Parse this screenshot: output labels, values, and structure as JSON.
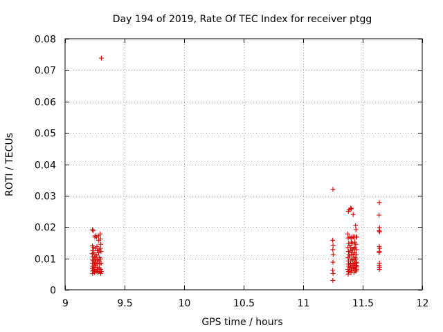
{
  "chart_data": {
    "type": "scatter",
    "title": "Day 194 of 2019, Rate Of TEC Index for receiver ptgg",
    "xlabel": "GPS time / hours",
    "ylabel": "ROTI / TECUs",
    "xlim": [
      9,
      12
    ],
    "ylim": [
      0,
      0.08
    ],
    "xticks": [
      9,
      9.5,
      10,
      10.5,
      11,
      11.5,
      12
    ],
    "xtick_labels": [
      "9",
      "9.5",
      "10",
      "10.5",
      "11",
      "11.5",
      "12"
    ],
    "yticks": [
      0,
      0.01,
      0.02,
      0.03,
      0.04,
      0.05,
      0.06,
      0.07,
      0.08
    ],
    "ytick_labels": [
      "0",
      "0.01",
      "0.02",
      "0.03",
      "0.04",
      "0.05",
      "0.06",
      "0.07",
      "0.08"
    ],
    "grid": true,
    "marker": "plus",
    "color": "#d40000",
    "points": [
      [
        9.305,
        0.0738
      ],
      [
        9.23,
        0.0192
      ],
      [
        9.235,
        0.0188
      ],
      [
        9.23,
        0.014
      ],
      [
        9.232,
        0.0125
      ],
      [
        9.228,
        0.0115
      ],
      [
        9.233,
        0.0105
      ],
      [
        9.231,
        0.0095
      ],
      [
        9.229,
        0.0085
      ],
      [
        9.233,
        0.0075
      ],
      [
        9.23,
        0.0068
      ],
      [
        9.232,
        0.006
      ],
      [
        9.231,
        0.0052
      ],
      [
        9.24,
        0.0135
      ],
      [
        9.243,
        0.0118
      ],
      [
        9.245,
        0.0102
      ],
      [
        9.242,
        0.0092
      ],
      [
        9.246,
        0.0082
      ],
      [
        9.244,
        0.0072
      ],
      [
        9.241,
        0.0063
      ],
      [
        9.247,
        0.0055
      ],
      [
        9.25,
        0.0168
      ],
      [
        9.255,
        0.0172
      ],
      [
        9.253,
        0.0132
      ],
      [
        9.256,
        0.0112
      ],
      [
        9.258,
        0.0098
      ],
      [
        9.254,
        0.0088
      ],
      [
        9.257,
        0.0078
      ],
      [
        9.26,
        0.0065
      ],
      [
        9.262,
        0.0058
      ],
      [
        9.265,
        0.0168
      ],
      [
        9.268,
        0.0138
      ],
      [
        9.27,
        0.0125
      ],
      [
        9.266,
        0.0108
      ],
      [
        9.272,
        0.0095
      ],
      [
        9.269,
        0.0085
      ],
      [
        9.274,
        0.0072
      ],
      [
        9.271,
        0.0062
      ],
      [
        9.276,
        0.0055
      ],
      [
        9.28,
        0.0172
      ],
      [
        9.283,
        0.0158
      ],
      [
        9.286,
        0.0128
      ],
      [
        9.282,
        0.0118
      ],
      [
        9.288,
        0.0102
      ],
      [
        9.285,
        0.0092
      ],
      [
        9.29,
        0.0082
      ],
      [
        9.287,
        0.0068
      ],
      [
        9.292,
        0.0058
      ],
      [
        9.295,
        0.0178
      ],
      [
        9.298,
        0.0162
      ],
      [
        9.3,
        0.0145
      ],
      [
        9.297,
        0.0132
      ],
      [
        9.302,
        0.0122
      ],
      [
        9.299,
        0.0098
      ],
      [
        9.303,
        0.0085
      ],
      [
        9.301,
        0.0065
      ],
      [
        9.305,
        0.0058
      ],
      [
        9.3,
        0.0052
      ],
      [
        11.25,
        0.032
      ],
      [
        11.248,
        0.0158
      ],
      [
        11.251,
        0.0142
      ],
      [
        11.249,
        0.0128
      ],
      [
        11.252,
        0.0112
      ],
      [
        11.25,
        0.0088
      ],
      [
        11.248,
        0.0062
      ],
      [
        11.251,
        0.0052
      ],
      [
        11.249,
        0.003
      ],
      [
        11.38,
        0.025
      ],
      [
        11.385,
        0.0255
      ],
      [
        11.375,
        0.0178
      ],
      [
        11.378,
        0.0165
      ],
      [
        11.382,
        0.0148
      ],
      [
        11.376,
        0.0135
      ],
      [
        11.38,
        0.0122
      ],
      [
        11.384,
        0.0112
      ],
      [
        11.377,
        0.0102
      ],
      [
        11.381,
        0.0092
      ],
      [
        11.379,
        0.0082
      ],
      [
        11.383,
        0.0075
      ],
      [
        11.376,
        0.0065
      ],
      [
        11.38,
        0.0058
      ],
      [
        11.378,
        0.005
      ],
      [
        11.39,
        0.0168
      ],
      [
        11.393,
        0.0142
      ],
      [
        11.395,
        0.0125
      ],
      [
        11.392,
        0.0108
      ],
      [
        11.396,
        0.0085
      ],
      [
        11.394,
        0.0072
      ],
      [
        11.391,
        0.006
      ],
      [
        11.4,
        0.026
      ],
      [
        11.404,
        0.0258
      ],
      [
        11.402,
        0.0165
      ],
      [
        11.405,
        0.0152
      ],
      [
        11.401,
        0.0135
      ],
      [
        11.406,
        0.0118
      ],
      [
        11.403,
        0.0098
      ],
      [
        11.4,
        0.0082
      ],
      [
        11.404,
        0.0068
      ],
      [
        11.402,
        0.0055
      ],
      [
        11.41,
        0.0168
      ],
      [
        11.413,
        0.0148
      ],
      [
        11.415,
        0.0128
      ],
      [
        11.412,
        0.0112
      ],
      [
        11.416,
        0.0095
      ],
      [
        11.414,
        0.0078
      ],
      [
        11.411,
        0.0062
      ],
      [
        11.42,
        0.024
      ],
      [
        11.423,
        0.0168
      ],
      [
        11.425,
        0.0132
      ],
      [
        11.422,
        0.0112
      ],
      [
        11.426,
        0.0098
      ],
      [
        11.424,
        0.0082
      ],
      [
        11.421,
        0.0068
      ],
      [
        11.427,
        0.0055
      ],
      [
        11.43,
        0.0168
      ],
      [
        11.433,
        0.0152
      ],
      [
        11.435,
        0.0135
      ],
      [
        11.432,
        0.0118
      ],
      [
        11.436,
        0.0102
      ],
      [
        11.434,
        0.0085
      ],
      [
        11.431,
        0.0072
      ],
      [
        11.437,
        0.006
      ],
      [
        11.44,
        0.0205
      ],
      [
        11.443,
        0.0192
      ],
      [
        11.446,
        0.0168
      ],
      [
        11.442,
        0.0145
      ],
      [
        11.447,
        0.0128
      ],
      [
        11.445,
        0.0112
      ],
      [
        11.441,
        0.0098
      ],
      [
        11.448,
        0.0088
      ],
      [
        11.444,
        0.0078
      ],
      [
        11.449,
        0.007
      ],
      [
        11.446,
        0.006
      ],
      [
        11.45,
        0.0168
      ],
      [
        11.448,
        0.0085
      ],
      [
        11.451,
        0.0075
      ],
      [
        11.447,
        0.0065
      ],
      [
        11.64,
        0.0278
      ],
      [
        11.637,
        0.0238
      ],
      [
        11.641,
        0.0198
      ],
      [
        11.638,
        0.0188
      ],
      [
        11.642,
        0.0185
      ],
      [
        11.639,
        0.0138
      ],
      [
        11.643,
        0.0132
      ],
      [
        11.64,
        0.0122
      ],
      [
        11.638,
        0.0118
      ],
      [
        11.641,
        0.0085
      ],
      [
        11.639,
        0.0078
      ],
      [
        11.642,
        0.0072
      ],
      [
        11.64,
        0.0065
      ]
    ]
  }
}
